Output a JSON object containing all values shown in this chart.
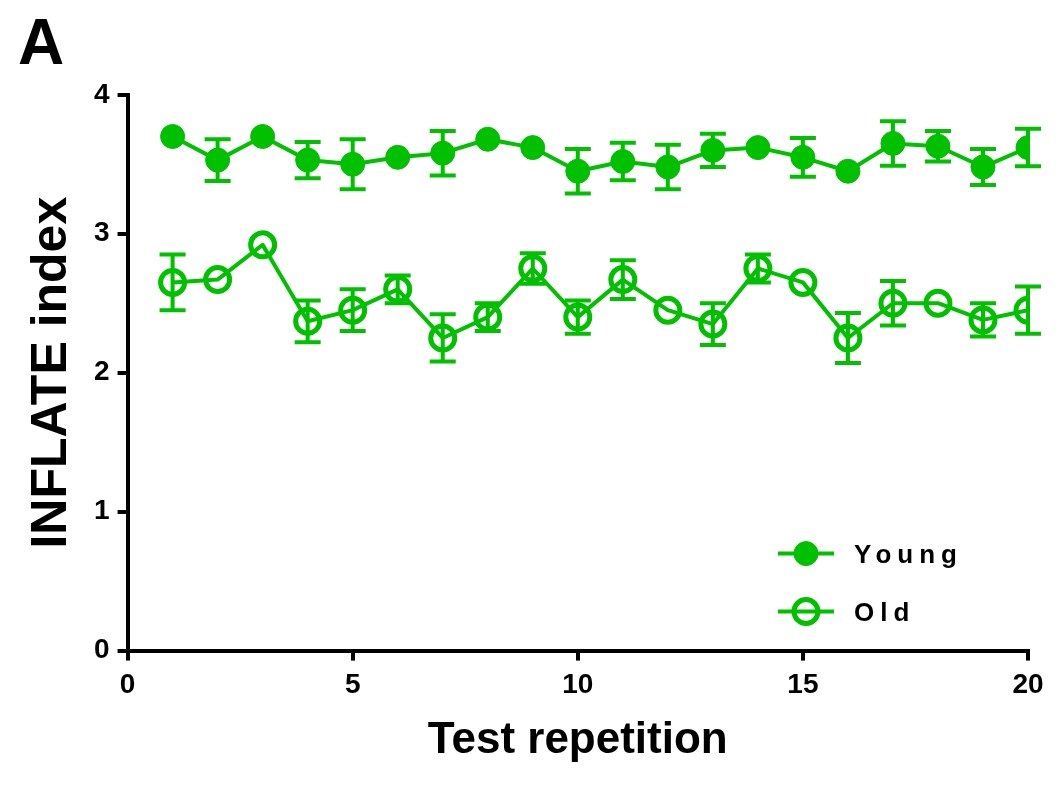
{
  "chart_data": {
    "type": "line",
    "title": "A",
    "xlabel": "Test repetition",
    "ylabel": "INFLATE index",
    "x": [
      1,
      2,
      3,
      4,
      5,
      6,
      7,
      8,
      9,
      10,
      11,
      12,
      13,
      14,
      15,
      16,
      17,
      18,
      19,
      20
    ],
    "xlim": [
      0,
      20
    ],
    "xticks": [
      0,
      5,
      10,
      15,
      20
    ],
    "ylim": [
      0,
      4
    ],
    "yticks": [
      0,
      1,
      2,
      3,
      4
    ],
    "grid": false,
    "legend": "bottom right",
    "marker": "circle",
    "line_style": "solid",
    "series": [
      {
        "name": "Young",
        "color": "#00c000",
        "values": [
          3.7,
          3.53,
          3.7,
          3.53,
          3.5,
          3.55,
          3.58,
          3.68,
          3.62,
          3.45,
          3.52,
          3.48,
          3.6,
          3.62,
          3.55,
          3.45,
          3.65,
          3.63,
          3.48,
          3.62
        ],
        "errors": [
          null,
          0.15,
          null,
          0.13,
          0.18,
          null,
          0.16,
          null,
          null,
          0.16,
          0.135,
          0.16,
          0.12,
          null,
          0.14,
          null,
          0.16,
          0.11,
          0.13,
          0.135
        ]
      },
      {
        "name": "Old",
        "color": "#00c000",
        "values": [
          2.65,
          2.67,
          2.92,
          2.37,
          2.45,
          2.6,
          2.25,
          2.4,
          2.75,
          2.4,
          2.67,
          2.45,
          2.35,
          2.75,
          2.65,
          2.25,
          2.5,
          2.5,
          2.38,
          2.45
        ],
        "errors": [
          0.2,
          null,
          null,
          0.15,
          0.15,
          0.1,
          0.17,
          0.1,
          0.11,
          0.12,
          0.14,
          null,
          0.15,
          0.1,
          null,
          0.18,
          0.16,
          null,
          0.12,
          0.17
        ]
      }
    ]
  }
}
